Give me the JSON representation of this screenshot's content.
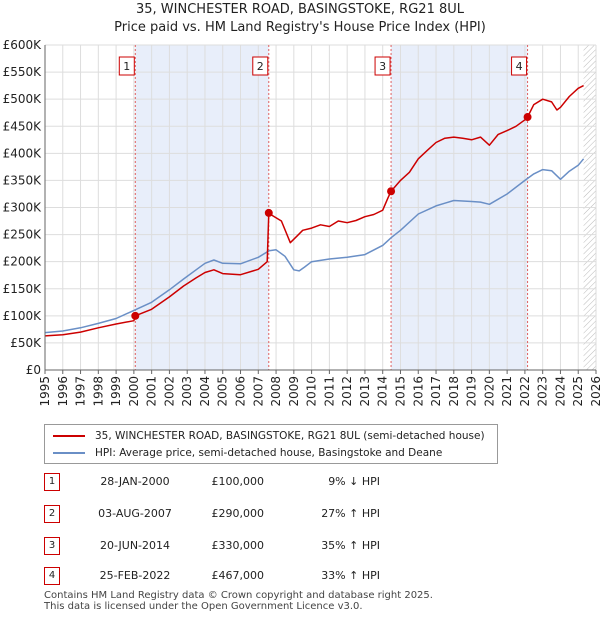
{
  "title_line1": "35, WINCHESTER ROAD, BASINGSTOKE, RG21 8UL",
  "title_line2": "Price paid vs. HM Land Registry's House Price Index (HPI)",
  "colors": {
    "property": "#cc0000",
    "hpi": "#6a8fc6",
    "shade": "#e8eefa",
    "marker_line": "#e06060"
  },
  "chart_data": {
    "type": "line",
    "title": "Price paid vs. HM Land Registry's House Price Index (HPI)",
    "xlim": [
      1995,
      2026
    ],
    "ylim": [
      0,
      600000
    ],
    "x_ticks": [
      "1995",
      "1996",
      "1997",
      "1998",
      "1999",
      "2000",
      "2001",
      "2002",
      "2003",
      "2004",
      "2005",
      "2006",
      "2007",
      "2008",
      "2009",
      "2010",
      "2011",
      "2012",
      "2013",
      "2014",
      "2015",
      "2016",
      "2017",
      "2018",
      "2019",
      "2020",
      "2021",
      "2022",
      "2023",
      "2024",
      "2025",
      "2026"
    ],
    "y_ticks": [
      {
        "value": 0,
        "label": "£0"
      },
      {
        "value": 50000,
        "label": "£50K"
      },
      {
        "value": 100000,
        "label": "£100K"
      },
      {
        "value": 150000,
        "label": "£150K"
      },
      {
        "value": 200000,
        "label": "£200K"
      },
      {
        "value": 250000,
        "label": "£250K"
      },
      {
        "value": 300000,
        "label": "£300K"
      },
      {
        "value": 350000,
        "label": "£350K"
      },
      {
        "value": 400000,
        "label": "£400K"
      },
      {
        "value": 450000,
        "label": "£450K"
      },
      {
        "value": 500000,
        "label": "£500K"
      },
      {
        "value": 550000,
        "label": "£550K"
      },
      {
        "value": 600000,
        "label": "£600K"
      }
    ],
    "shaded_ranges": [
      [
        2000.08,
        2007.59
      ],
      [
        2014.47,
        2022.15
      ]
    ],
    "future_hatch_from": 2025.3,
    "series": [
      {
        "name": "35, WINCHESTER ROAD, BASINGSTOKE, RG21 8UL (semi-detached house)",
        "x": [
          1995.0,
          1996.0,
          1997.0,
          1998.0,
          1999.0,
          2000.0,
          2000.08,
          2001.0,
          2002.0,
          2002.8,
          2003.5,
          2004.0,
          2004.5,
          2005.0,
          2006.0,
          2007.0,
          2007.5,
          2007.59,
          2007.8,
          2008.3,
          2008.8,
          2009.2,
          2009.5,
          2010.0,
          2010.5,
          2011.0,
          2011.5,
          2012.0,
          2012.5,
          2013.0,
          2013.5,
          2014.0,
          2014.3,
          2014.47,
          2015.0,
          2015.5,
          2016.0,
          2016.5,
          2017.0,
          2017.5,
          2018.0,
          2018.5,
          2019.0,
          2019.5,
          2020.0,
          2020.5,
          2021.0,
          2021.5,
          2022.0,
          2022.15,
          2022.5,
          2023.0,
          2023.5,
          2023.8,
          2024.0,
          2024.5,
          2025.0,
          2025.3
        ],
        "y": [
          63000,
          65000,
          70000,
          78000,
          85000,
          91000,
          100000,
          112000,
          135000,
          155000,
          170000,
          180000,
          185000,
          178000,
          176000,
          186000,
          200000,
          290000,
          285000,
          275000,
          235000,
          248000,
          258000,
          262000,
          268000,
          265000,
          275000,
          272000,
          276000,
          283000,
          287000,
          295000,
          318000,
          330000,
          350000,
          365000,
          390000,
          405000,
          420000,
          428000,
          430000,
          428000,
          425000,
          430000,
          415000,
          435000,
          442000,
          450000,
          462000,
          467000,
          490000,
          500000,
          495000,
          480000,
          485000,
          505000,
          520000,
          525000
        ]
      },
      {
        "name": "HPI: Average price, semi-detached house, Basingstoke and Deane",
        "x": [
          1995.0,
          1996.0,
          1997.0,
          1998.0,
          1999.0,
          2000.0,
          2001.0,
          2002.0,
          2002.8,
          2003.5,
          2004.0,
          2004.5,
          2005.0,
          2006.0,
          2007.0,
          2007.6,
          2008.0,
          2008.5,
          2009.0,
          2009.3,
          2009.6,
          2010.0,
          2011.0,
          2012.0,
          2013.0,
          2014.0,
          2014.5,
          2015.0,
          2016.0,
          2017.0,
          2017.5,
          2018.0,
          2019.0,
          2019.5,
          2020.0,
          2021.0,
          2022.0,
          2022.5,
          2023.0,
          2023.5,
          2024.0,
          2024.5,
          2025.0,
          2025.3
        ],
        "y": [
          69000,
          72000,
          78000,
          86000,
          95000,
          110000,
          125000,
          148000,
          168000,
          185000,
          197000,
          203000,
          197000,
          196000,
          208000,
          220000,
          222000,
          210000,
          185000,
          183000,
          190000,
          200000,
          205000,
          208000,
          213000,
          230000,
          245000,
          258000,
          288000,
          303000,
          308000,
          313000,
          311000,
          310000,
          306000,
          325000,
          350000,
          362000,
          370000,
          368000,
          352000,
          367000,
          378000,
          390000
        ]
      }
    ],
    "sales": [
      {
        "num": "1",
        "x": 2000.08,
        "y": 100000,
        "date": "28-JAN-2000",
        "price": "£100,000",
        "hpi": "9% ↓ HPI"
      },
      {
        "num": "2",
        "x": 2007.59,
        "y": 290000,
        "date": "03-AUG-2007",
        "price": "£290,000",
        "hpi": "27% ↑ HPI"
      },
      {
        "num": "3",
        "x": 2014.47,
        "y": 330000,
        "date": "20-JUN-2014",
        "price": "£330,000",
        "hpi": "35% ↑ HPI"
      },
      {
        "num": "4",
        "x": 2022.15,
        "y": 467000,
        "date": "25-FEB-2022",
        "price": "£467,000",
        "hpi": "33% ↑ HPI"
      }
    ]
  },
  "legend": {
    "property": "35, WINCHESTER ROAD, BASINGSTOKE, RG21 8UL (semi-detached house)",
    "hpi": "HPI: Average price, semi-detached house, Basingstoke and Deane"
  },
  "footer_line1": "Contains HM Land Registry data © Crown copyright and database right 2025.",
  "footer_line2": "This data is licensed under the Open Government Licence v3.0."
}
